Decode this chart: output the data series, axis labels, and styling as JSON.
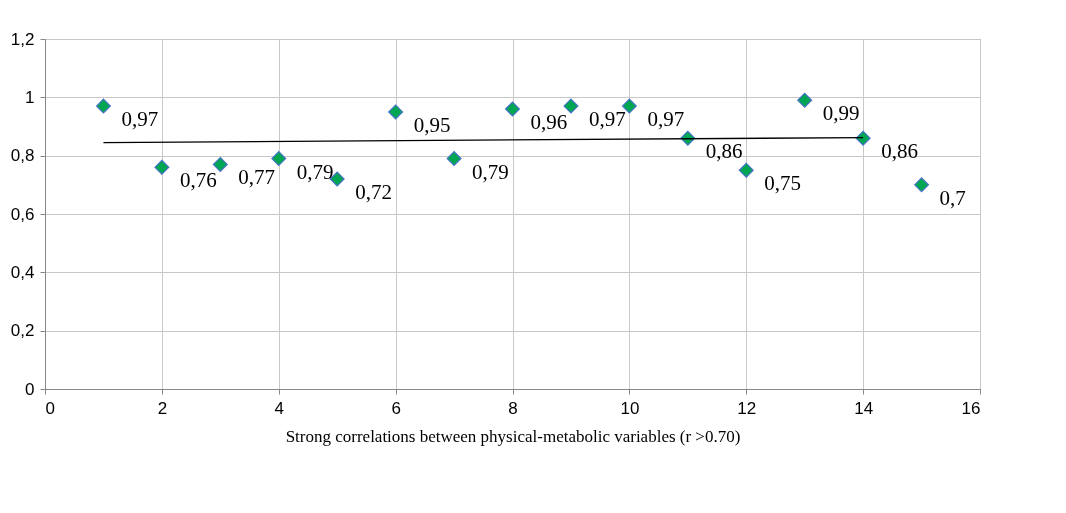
{
  "chart_data": {
    "type": "scatter",
    "xlabel": "Strong correlations between physical-metabolic variables (r >0.70)",
    "xlim": [
      0,
      16
    ],
    "ylim": [
      0,
      1.2
    ],
    "xticks": [
      0,
      2,
      4,
      6,
      8,
      10,
      12,
      14,
      16
    ],
    "yticks": [
      0,
      {
        "value": 0.2,
        "label": "0,2"
      },
      {
        "value": 0.4,
        "label": "0,4"
      },
      {
        "value": 0.6,
        "label": "0,6"
      },
      {
        "value": 0.8,
        "label": "0,8"
      },
      1,
      {
        "value": 1.2,
        "label": "1,2"
      }
    ],
    "grid": true,
    "series": [
      {
        "marker": "diamond",
        "color": "#00a651",
        "x": [
          1,
          2,
          3,
          4,
          5,
          6,
          7,
          8,
          9,
          10,
          11,
          12,
          13,
          14,
          15
        ],
        "values": [
          0.97,
          0.76,
          0.77,
          0.79,
          0.72,
          0.95,
          0.79,
          0.96,
          0.97,
          0.97,
          0.86,
          0.75,
          0.99,
          0.86,
          0.7
        ],
        "value_labels": [
          "0,97",
          "0,76",
          "0,77",
          "0,79",
          "0,72",
          "0,95",
          "0,79",
          "0,96",
          "0,97",
          "0,97",
          "0,86",
          "0,75",
          "0,99",
          "0,86",
          "0,7"
        ]
      },
      {
        "type": "line",
        "color": "#000000",
        "x": [
          1,
          14
        ],
        "values": [
          0.845,
          0.862
        ]
      }
    ]
  }
}
